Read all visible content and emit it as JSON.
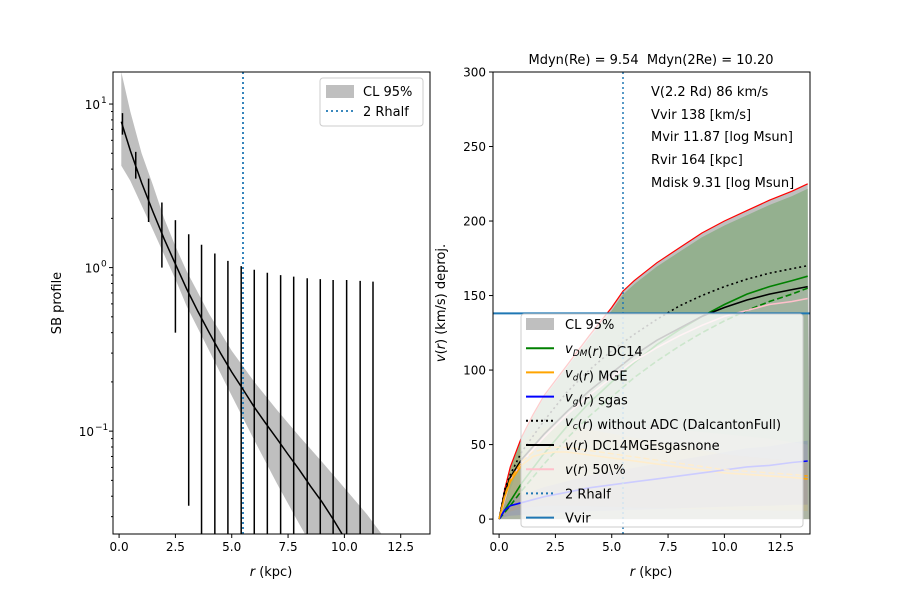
{
  "chart_data": [
    {
      "type": "line",
      "panel": "left",
      "title": "",
      "xlabel": "r (kpc)",
      "ylabel": "SB profile",
      "yscale": "log",
      "xlim": [
        -0.27,
        13.8
      ],
      "ylim": [
        0.0235,
        15.7
      ],
      "xticks": [
        0.0,
        2.5,
        5.0,
        7.5,
        10.0,
        12.5
      ],
      "xtick_labels": [
        "0.0",
        "2.5",
        "5.0",
        "7.5",
        "10.0",
        "12.5"
      ],
      "yticks": [
        0.1,
        1,
        10
      ],
      "ytick_labels": [
        "10",
        "10",
        "10"
      ],
      "ytick_exponents": [
        "−1",
        "0",
        "1"
      ],
      "legend": {
        "placement": "top-right",
        "entries": [
          {
            "label": "CL 95%",
            "kind": "patch",
            "color": "#bfbfbf"
          },
          {
            "label": "2 Rhalf",
            "kind": "dotted",
            "color": "#1f77b4"
          }
        ]
      },
      "rhalf2": 5.5,
      "model": {
        "x": [
          0.1,
          0.5,
          1.0,
          1.5,
          2.0,
          2.5,
          3.0,
          3.5,
          4.0,
          4.5,
          5.0,
          5.5,
          6.0,
          6.5,
          7.0,
          7.5,
          8.0,
          8.5,
          9.0,
          9.5,
          9.9
        ],
        "y": [
          7.8,
          5.2,
          3.3,
          2.2,
          1.5,
          1.05,
          0.74,
          0.54,
          0.4,
          0.3,
          0.23,
          0.18,
          0.14,
          0.112,
          0.09,
          0.072,
          0.058,
          0.046,
          0.037,
          0.029,
          0.0235
        ]
      },
      "band_upper": {
        "x": [
          0.1,
          0.5,
          1.0,
          1.5,
          2.0,
          2.5,
          3.0,
          4.0,
          5.0,
          6.0,
          7.0,
          8.0,
          9.0,
          10.0,
          11.0,
          11.65
        ],
        "y": [
          15.7,
          9.0,
          5.0,
          3.2,
          2.0,
          1.35,
          0.95,
          0.52,
          0.31,
          0.2,
          0.135,
          0.093,
          0.065,
          0.045,
          0.031,
          0.0235
        ]
      },
      "band_lower": {
        "x": [
          0.1,
          0.5,
          1.0,
          1.5,
          2.0,
          2.5,
          3.0,
          4.0,
          5.0,
          6.0,
          7.0,
          8.0,
          8.25
        ],
        "y": [
          4.2,
          3.4,
          2.4,
          1.7,
          1.2,
          0.85,
          0.58,
          0.31,
          0.165,
          0.088,
          0.048,
          0.027,
          0.0235
        ]
      },
      "errorbars": {
        "x": [
          0.15,
          0.74,
          1.31,
          1.9,
          2.5,
          3.09,
          3.66,
          4.25,
          4.83,
          5.42,
          6.0,
          6.58,
          7.17,
          7.75,
          8.35,
          8.93,
          9.5,
          10.1,
          10.7,
          11.27
        ],
        "ylow": [
          6.5,
          3.5,
          1.9,
          1.0,
          0.4,
          0.035,
          0.0235,
          0.0235,
          0.0235,
          0.0235,
          0.0235,
          0.0235,
          0.0235,
          0.0235,
          0.0235,
          0.0235,
          0.0235,
          0.0235,
          0.0235,
          0.0235
        ],
        "yhigh": [
          8.8,
          5.1,
          3.5,
          2.5,
          1.95,
          1.6,
          1.38,
          1.22,
          1.1,
          1.02,
          0.97,
          0.93,
          0.9,
          0.88,
          0.86,
          0.85,
          0.84,
          0.84,
          0.83,
          0.82
        ]
      }
    },
    {
      "type": "line",
      "panel": "right",
      "title": "Mdyn(Re) = 9.54  Mdyn(2Re) = 10.20",
      "xlabel": "r (kpc)",
      "ylabel": "v(r) (km/s) deproj.",
      "xlim": [
        -0.27,
        13.8
      ],
      "ylim": [
        -10,
        300
      ],
      "xticks": [
        0.0,
        2.5,
        5.0,
        7.5,
        10.0,
        12.5
      ],
      "xtick_labels": [
        "0.0",
        "2.5",
        "5.0",
        "7.5",
        "10.0",
        "12.5"
      ],
      "yticks": [
        0,
        50,
        100,
        150,
        200,
        250,
        300
      ],
      "ytick_labels": [
        "0",
        "50",
        "100",
        "150",
        "200",
        "250",
        "300"
      ],
      "annotations": [
        "V(2.2 Rd) 86 km/s",
        "Vvir 138 [km/s]",
        "Mvir 11.87 [log Msun]",
        "Rvir 164 [kpc]",
        "Mdisk 9.31 [log Msun]"
      ],
      "vvir": 138,
      "rhalf2": 5.5,
      "legend": {
        "placement": "lower-center",
        "entries": [
          {
            "label": "CL 95%",
            "kind": "patch",
            "color": "#bfbfbf"
          },
          {
            "label": "v_DM(r) DC14",
            "main": "v",
            "sub": "DM",
            "rest": "(r) DC14",
            "kind": "line",
            "color": "#008000"
          },
          {
            "label": "v_d(r) MGE",
            "main": "v",
            "sub": "d",
            "rest": "(r) MGE",
            "kind": "line",
            "color": "#ffa500"
          },
          {
            "label": "v_g(r) sgas",
            "main": "v",
            "sub": "g",
            "rest": "(r) sgas",
            "kind": "line",
            "color": "#0000ff"
          },
          {
            "label": "v_c(r) without ADC (DalcantonFull)",
            "main": "v",
            "sub": "c",
            "rest": "(r) without ADC (DalcantonFull)",
            "kind": "dotted",
            "color": "#000000"
          },
          {
            "label": "v(r) DC14MGEsgasnone",
            "main": "v",
            "sub": "",
            "rest": "(r) DC14MGEsgasnone",
            "kind": "line",
            "color": "#000000"
          },
          {
            "label": "v(r) 50\\%",
            "main": "v",
            "sub": "",
            "rest": "(r) 50\\%",
            "kind": "line",
            "color": "#ffc0cb"
          },
          {
            "label": "2 Rhalf",
            "kind": "dotted",
            "color": "#1f77b4"
          },
          {
            "label": "Vvir",
            "kind": "line",
            "color": "#1f77b4"
          }
        ]
      },
      "series": [
        {
          "name": "CL 95% upper (red)",
          "color": "#ff0000",
          "x": [
            0,
            0.25,
            0.5,
            1,
            1.5,
            2,
            3,
            4,
            5,
            5.5,
            6,
            7,
            8,
            9,
            10,
            11,
            12,
            13,
            13.7
          ],
          "y": [
            0,
            20,
            35,
            55,
            70,
            83,
            103,
            123,
            142,
            153,
            160,
            172,
            182,
            192,
            200,
            207,
            214,
            220,
            225
          ]
        },
        {
          "name": "vc without ADC",
          "color": "#000000",
          "style": "dotted",
          "x": [
            0,
            0.25,
            0.5,
            1,
            2,
            3,
            4,
            5,
            6,
            7,
            8,
            9,
            10,
            11,
            12,
            13,
            13.7
          ],
          "y": [
            0,
            20,
            30,
            45,
            66,
            85,
            100,
            113,
            124,
            134,
            143,
            150,
            156,
            161,
            165,
            168,
            170
          ]
        },
        {
          "name": "vDM DC14",
          "color": "#008000",
          "x": [
            0,
            0.5,
            1,
            2,
            3,
            4,
            5,
            6,
            7,
            8,
            9,
            10,
            11,
            12,
            13,
            13.7
          ],
          "y": [
            0,
            12,
            24,
            44,
            62,
            78,
            92,
            105,
            117,
            127,
            136,
            144,
            151,
            156,
            160,
            163
          ]
        },
        {
          "name": "vDM DC14 dashed",
          "color": "#008000",
          "style": "dashed",
          "x": [
            0,
            0.5,
            1,
            2,
            3,
            4,
            5,
            6,
            7,
            8,
            9,
            10,
            11,
            12,
            13,
            13.7
          ],
          "y": [
            0,
            9,
            19,
            37,
            54,
            69,
            82,
            95,
            106,
            116,
            125,
            133,
            140,
            146,
            151,
            155
          ]
        },
        {
          "name": "v DC14MGEsgasnone",
          "color": "#000000",
          "x": [
            0,
            0.25,
            0.5,
            1,
            2,
            3,
            4,
            5,
            6,
            7,
            8,
            9,
            10,
            11,
            12,
            13,
            13.7
          ],
          "y": [
            0,
            18,
            28,
            40,
            57,
            72,
            86,
            98,
            110,
            120,
            128,
            136,
            142,
            147,
            151,
            154,
            156
          ]
        },
        {
          "name": "v 50%",
          "color": "#ffc0cb",
          "x": [
            0,
            0.5,
            1,
            2,
            3,
            4,
            5,
            6,
            7,
            8,
            9,
            10,
            11,
            12,
            13,
            13.7
          ],
          "y": [
            0,
            26,
            38,
            55,
            70,
            83,
            95,
            106,
            115,
            123,
            130,
            136,
            140,
            144,
            146,
            148
          ]
        },
        {
          "name": "vd MGE",
          "color": "#ffa500",
          "x": [
            0,
            0.25,
            0.5,
            1,
            1.5,
            2,
            2.5,
            3,
            4,
            5,
            6,
            7,
            8,
            9,
            10,
            11,
            12,
            13,
            13.7
          ],
          "y": [
            0,
            15,
            25,
            36,
            42,
            44,
            45,
            45,
            43,
            41,
            39,
            37,
            35,
            33,
            31,
            30,
            29,
            28,
            27
          ]
        },
        {
          "name": "vg sgas",
          "color": "#0000ff",
          "x": [
            0,
            0.25,
            0.5,
            1,
            2,
            3,
            4,
            5,
            6,
            7,
            8,
            9,
            10,
            11,
            12,
            13,
            13.7
          ],
          "y": [
            0,
            6,
            9,
            11,
            15,
            18,
            21,
            23,
            25,
            27,
            29,
            31,
            33,
            35,
            36,
            38,
            39
          ]
        }
      ]
    }
  ]
}
